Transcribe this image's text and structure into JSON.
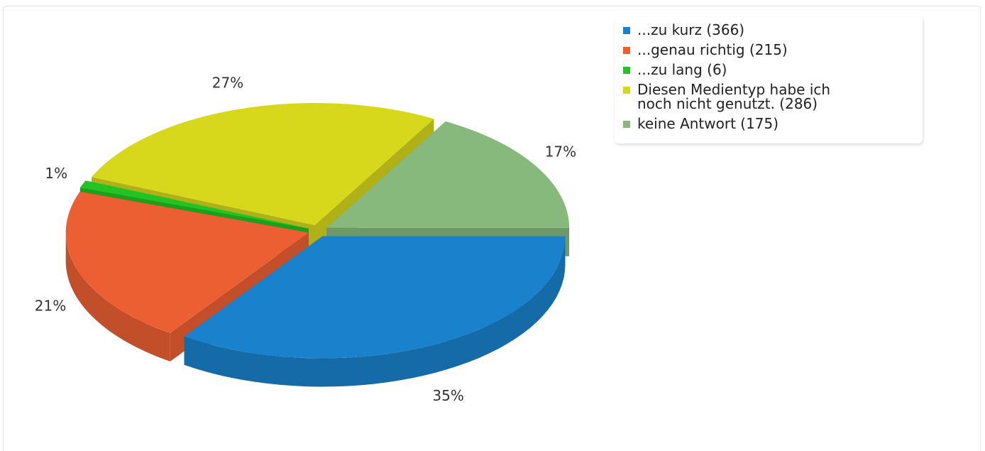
{
  "chart_data": {
    "type": "pie3d",
    "categories": [
      "...zu kurz (366)",
      "...genau richtig (215)",
      "...zu lang (6)",
      "Diesen Medientyp habe ich\nnoch nicht genutzt. (286)",
      "keine Antwort (175)"
    ],
    "values": [
      35,
      21,
      1,
      27,
      17
    ],
    "value_labels": [
      "35%",
      "21%",
      "1%",
      "27%",
      "17%"
    ],
    "colors": [
      "#1a82cc",
      "#ec5f33",
      "#22c322",
      "#d7d71c",
      "#86b97b"
    ],
    "legend": "top-right"
  }
}
